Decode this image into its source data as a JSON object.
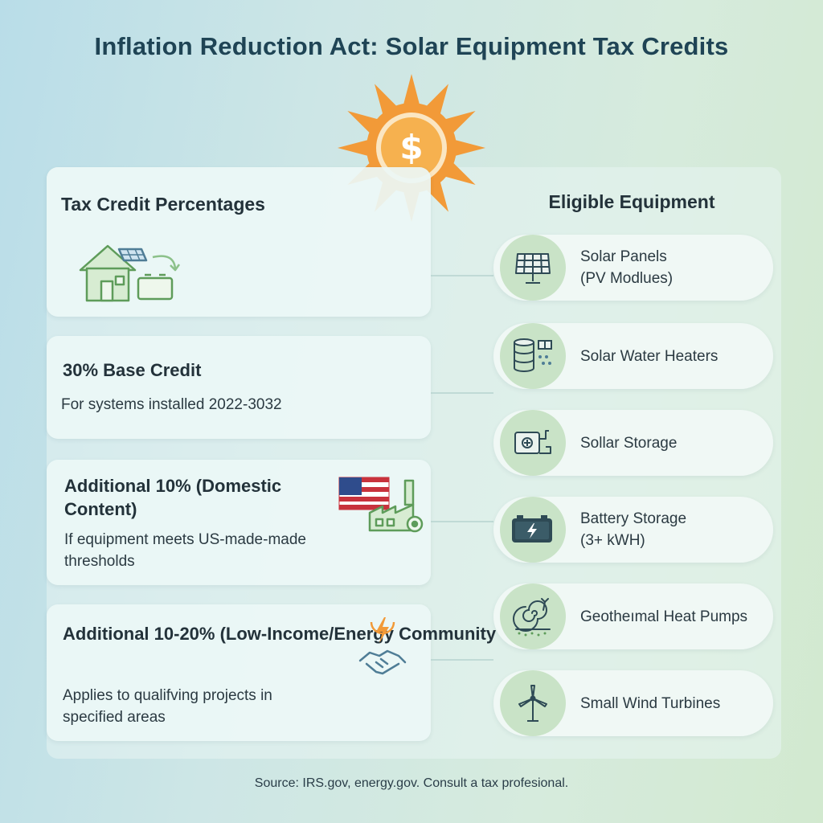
{
  "title": "Inflation Reduction Act: Solar Equipment Tax Credits",
  "sun_symbol": "$",
  "left": {
    "heading": "Tax Credit Percentages",
    "cards": [
      {
        "title": "30% Base Credit",
        "desc": "For systems installed 2022-3032"
      },
      {
        "title": "Additional 10% (Domestic Content)",
        "desc": "If equipment meets US-made-made thresholds"
      },
      {
        "title": "Additional 10-20% (Low-Income/Energy Community",
        "desc": "Applies to qualifving projects in specified areas"
      }
    ]
  },
  "right": {
    "heading": "Eligible Equipment",
    "items": [
      {
        "line1": "Solar Panels",
        "line2": "(PV Modlues)",
        "icon": "solar-panel-icon"
      },
      {
        "line1": "Solar Water Heaters",
        "line2": "",
        "icon": "water-heater-icon"
      },
      {
        "line1": "Sollar Storage",
        "line2": "",
        "icon": "storage-icon"
      },
      {
        "line1": "Battery Storage",
        "line2": "(3+ kWH)",
        "icon": "battery-icon"
      },
      {
        "line1": "Geotheımal Heat Pumps",
        "line2": "",
        "icon": "geothermal-icon"
      },
      {
        "line1": "Small Wind Turbines",
        "line2": "",
        "icon": "wind-turbine-icon"
      }
    ]
  },
  "source": "Source: IRS.gov, energy.gov. Consult a tax profesional.",
  "colors": {
    "sun": "#f29a38",
    "sun_inner": "#f6b14f",
    "icon_green": "#5e9c5a",
    "icon_dark": "#2e4a55",
    "circle_bg": "#c9e3c7",
    "flag_red": "#c8323c",
    "flag_blue": "#2f4c8c"
  }
}
